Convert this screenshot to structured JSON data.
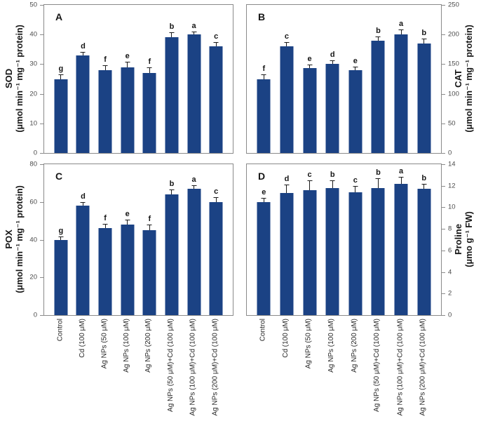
{
  "chart_data": {
    "type": "bar",
    "grid": false,
    "error_bars": true,
    "bar_color": "#1b4284",
    "error_bar_color": "#1a1a1a",
    "categories": [
      "Control",
      "Cd (100 μM)",
      "Ag NPs (50 μM)",
      "Ag NPs (100 μM)",
      "Ag NPs (200 μM)",
      "Ag NPs (50 μM)+Cd (100 μM)",
      "Ag NPs (100 μM)+Cd (100 μM)",
      "Ag NPs (200 μM)+Cd (100 μM)"
    ],
    "panels": [
      {
        "label": "A",
        "name": "SOD",
        "unit": "(μmol min⁻¹ mg⁻¹ protein)",
        "axis_side": "left",
        "ylim": [
          0,
          50
        ],
        "yticks": [
          0,
          10,
          20,
          30,
          40,
          50
        ],
        "values": [
          25,
          33,
          28,
          29,
          27,
          39,
          40,
          36
        ],
        "errors": [
          1.5,
          1.2,
          1.6,
          1.8,
          1.8,
          1.8,
          1.0,
          1.4
        ],
        "sig_letters": [
          "g",
          "d",
          "f",
          "e",
          "f",
          "b",
          "a",
          "c"
        ]
      },
      {
        "label": "B",
        "name": "CAT",
        "unit": "(μmol min⁻¹ mg⁻¹ protein)",
        "axis_side": "right",
        "ylim": [
          0,
          250
        ],
        "yticks": [
          0,
          50,
          100,
          150,
          200,
          250
        ],
        "values": [
          125,
          180,
          143,
          150,
          140,
          190,
          200,
          185
        ],
        "errors": [
          8,
          7,
          6,
          6,
          6,
          7,
          8,
          8
        ],
        "sig_letters": [
          "f",
          "c",
          "e",
          "d",
          "e",
          "b",
          "a",
          "b"
        ]
      },
      {
        "label": "C",
        "name": "POX",
        "unit": "(μmol min⁻¹ mg⁻¹ protein)",
        "axis_side": "left",
        "ylim": [
          0,
          80
        ],
        "yticks": [
          0,
          20,
          40,
          60,
          80
        ],
        "values": [
          40,
          58,
          46,
          48,
          45,
          64,
          67,
          60
        ],
        "errors": [
          1.5,
          2,
          2.5,
          2.5,
          3,
          2.5,
          2,
          2.5
        ],
        "sig_letters": [
          "g",
          "d",
          "f",
          "e",
          "f",
          "b",
          "a",
          "c"
        ]
      },
      {
        "label": "D",
        "name": "Proline",
        "unit": "(μmo g⁻¹ FW)",
        "axis_side": "right",
        "ylim": [
          0,
          14
        ],
        "yticks": [
          0,
          2,
          4,
          6,
          8,
          10,
          12,
          14
        ],
        "values": [
          10.5,
          11.3,
          11.6,
          11.8,
          11.4,
          11.8,
          12.2,
          11.7
        ],
        "errors": [
          0.4,
          0.8,
          0.9,
          0.7,
          0.6,
          0.9,
          0.6,
          0.5
        ],
        "sig_letters": [
          "e",
          "d",
          "c",
          "b",
          "c",
          "b",
          "a",
          "b"
        ]
      }
    ]
  }
}
